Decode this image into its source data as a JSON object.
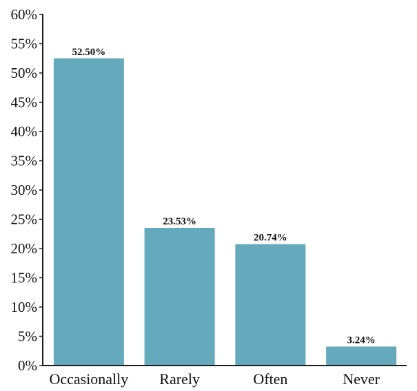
{
  "chart_data": {
    "type": "bar",
    "categories": [
      "Occasionally",
      "Rarely",
      "Often",
      "Never"
    ],
    "values": [
      52.5,
      23.53,
      20.74,
      3.24
    ],
    "data_labels": [
      "52.50%",
      "23.53%",
      "20.74%",
      "3.24%"
    ],
    "ylim": [
      0,
      60
    ],
    "yticks": [
      0,
      5,
      10,
      15,
      20,
      25,
      30,
      35,
      40,
      45,
      50,
      55,
      60
    ],
    "ytick_labels": [
      "0%",
      "5%",
      "10%",
      "15%",
      "20%",
      "25%",
      "30%",
      "35%",
      "40%",
      "45%",
      "50%",
      "55%",
      "60%"
    ],
    "title": "",
    "xlabel": "",
    "ylabel": "",
    "grid": false,
    "legend": "none",
    "bar_color": "#64aabc",
    "axis_color": "#1a1a1a"
  }
}
